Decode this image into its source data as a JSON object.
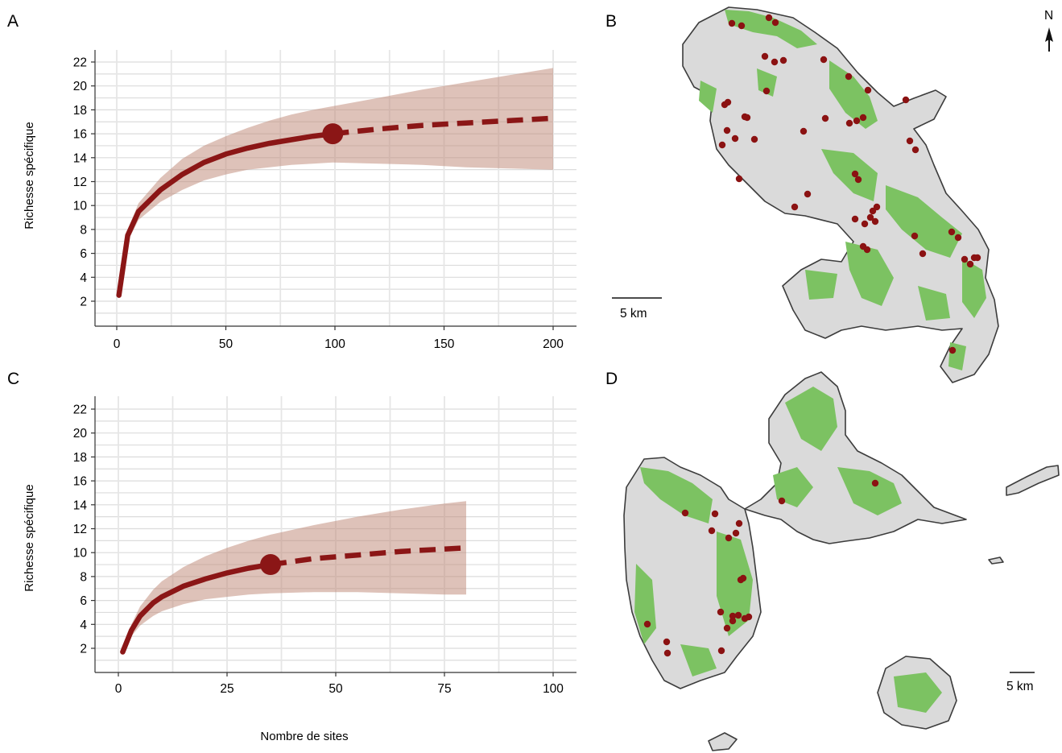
{
  "panels": {
    "a": "A",
    "b": "B",
    "c": "C",
    "d": "D"
  },
  "colors": {
    "curve": "#8b1616",
    "band": "#c08a78",
    "land": "#dadada",
    "vegetation": "#7cc262",
    "site": "#8b1212"
  },
  "chart_data": [
    {
      "panel": "A",
      "type": "line",
      "ylabel": "Richesse spécifique",
      "xlabel": "",
      "xlim": [
        0,
        200
      ],
      "ylim": [
        0,
        23
      ],
      "xticks": [
        0,
        50,
        100,
        150,
        200
      ],
      "yticks": [
        2,
        4,
        6,
        8,
        10,
        12,
        14,
        16,
        18,
        20,
        22
      ],
      "interpolated": {
        "x": [
          1,
          5,
          10,
          20,
          30,
          40,
          50,
          60,
          70,
          80,
          90,
          99
        ],
        "y": [
          2.5,
          7.5,
          9.5,
          11.3,
          12.6,
          13.6,
          14.3,
          14.8,
          15.2,
          15.5,
          15.8,
          16.0
        ]
      },
      "extrapolated": {
        "x": [
          99,
          120,
          140,
          160,
          180,
          200
        ],
        "y": [
          16.0,
          16.4,
          16.7,
          16.9,
          17.1,
          17.3
        ]
      },
      "ci_upper": {
        "x": [
          5,
          10,
          20,
          30,
          40,
          50,
          60,
          70,
          80,
          90,
          99,
          120,
          140,
          160,
          180,
          200
        ],
        "y": [
          8.0,
          10.2,
          12.3,
          13.9,
          15.0,
          15.8,
          16.5,
          17.1,
          17.6,
          18.0,
          18.3,
          19.0,
          19.7,
          20.3,
          20.9,
          21.5
        ]
      },
      "ci_lower": {
        "x": [
          5,
          10,
          20,
          30,
          40,
          50,
          60,
          70,
          80,
          90,
          99,
          120,
          140,
          160,
          180,
          200
        ],
        "y": [
          7.0,
          8.8,
          10.3,
          11.3,
          12.1,
          12.6,
          13.0,
          13.2,
          13.4,
          13.5,
          13.6,
          13.5,
          13.4,
          13.2,
          13.1,
          13.0
        ]
      },
      "observed_point": {
        "x": 99,
        "y": 16.0
      }
    },
    {
      "panel": "C",
      "type": "line",
      "ylabel": "Richesse spécifique",
      "xlabel": "Nombre de sites",
      "xlim": [
        0,
        100
      ],
      "ylim": [
        0,
        23
      ],
      "xticks": [
        0,
        25,
        50,
        75,
        100
      ],
      "yticks": [
        2,
        4,
        6,
        8,
        10,
        12,
        14,
        16,
        18,
        20,
        22
      ],
      "interpolated": {
        "x": [
          1,
          3,
          5,
          8,
          10,
          15,
          20,
          25,
          30,
          35
        ],
        "y": [
          1.7,
          3.5,
          4.7,
          5.8,
          6.3,
          7.2,
          7.8,
          8.3,
          8.7,
          9.0
        ]
      },
      "extrapolated": {
        "x": [
          35,
          45,
          55,
          65,
          75,
          80
        ],
        "y": [
          9.0,
          9.5,
          9.8,
          10.1,
          10.3,
          10.4
        ]
      },
      "ci_upper": {
        "x": [
          1,
          3,
          5,
          8,
          10,
          15,
          20,
          25,
          30,
          35,
          45,
          55,
          65,
          75,
          80
        ],
        "y": [
          1.9,
          4.0,
          5.5,
          6.9,
          7.6,
          8.8,
          9.7,
          10.4,
          11.0,
          11.5,
          12.3,
          13.0,
          13.6,
          14.1,
          14.3
        ]
      },
      "ci_lower": {
        "x": [
          1,
          3,
          5,
          8,
          10,
          15,
          20,
          25,
          30,
          35,
          45,
          55,
          65,
          75,
          80
        ],
        "y": [
          1.5,
          3.0,
          3.9,
          4.7,
          5.1,
          5.7,
          6.1,
          6.3,
          6.5,
          6.6,
          6.7,
          6.7,
          6.6,
          6.5,
          6.5
        ]
      },
      "observed_point": {
        "x": 35,
        "y": 9.0
      }
    }
  ],
  "maps": {
    "north_label": "N",
    "scalebar_b": "5 km",
    "scalebar_d": "5 km"
  }
}
